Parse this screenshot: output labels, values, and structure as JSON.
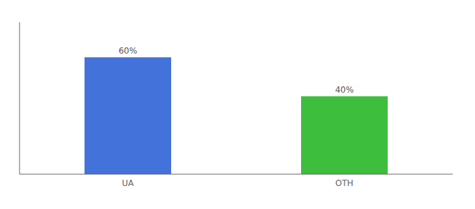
{
  "chart_data": {
    "type": "bar",
    "categories": [
      "UA",
      "OTH"
    ],
    "values": [
      60,
      40
    ],
    "value_labels": [
      "60%",
      "40%"
    ],
    "colors": [
      "#4472db",
      "#3dbe3d"
    ],
    "ylim": [
      0,
      78
    ],
    "yticks": [],
    "data_labels": true,
    "tick_labels": "x"
  }
}
